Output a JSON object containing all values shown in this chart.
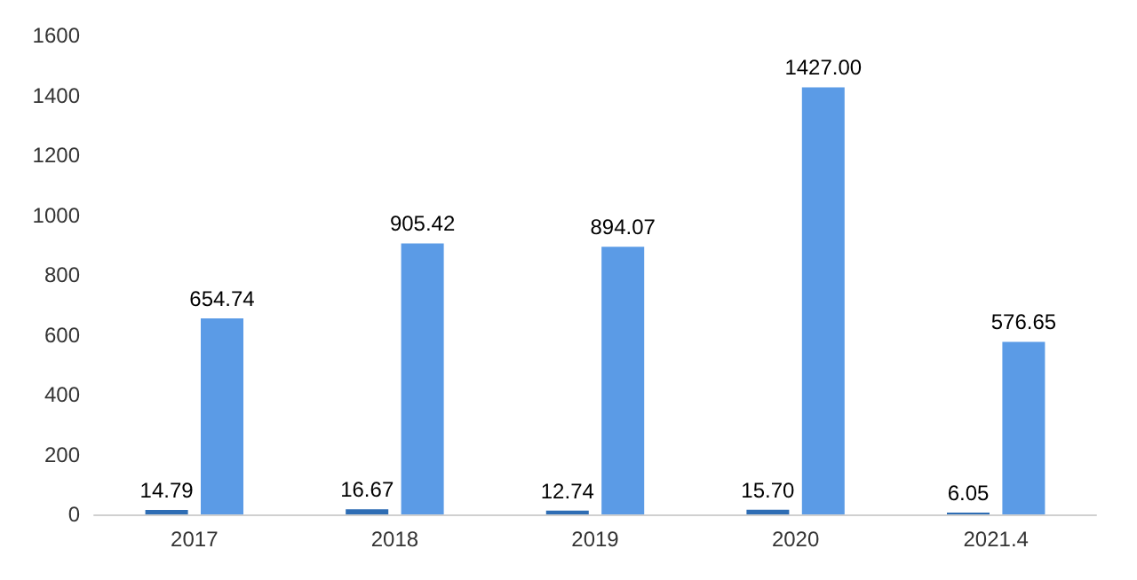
{
  "chart_data": {
    "type": "bar",
    "categories": [
      "2017",
      "2018",
      "2019",
      "2020",
      "2021.4"
    ],
    "series": [
      {
        "color": "#2e6db4",
        "values": [
          14.79,
          16.67,
          12.74,
          15.7,
          6.05
        ],
        "value_labels": [
          "14.79",
          "16.67",
          "12.74",
          "15.70",
          "6.05"
        ]
      },
      {
        "color": "#5b9be6",
        "values": [
          654.74,
          905.42,
          894.07,
          1427,
          576.65
        ],
        "value_labels": [
          "654.74",
          "905.42",
          "894.07",
          "1427.00",
          "576.65"
        ]
      }
    ],
    "ylim": [
      0,
      1600
    ],
    "yticks": [
      0,
      200,
      400,
      600,
      800,
      1000,
      1200,
      1400,
      1600
    ],
    "grid": false
  }
}
